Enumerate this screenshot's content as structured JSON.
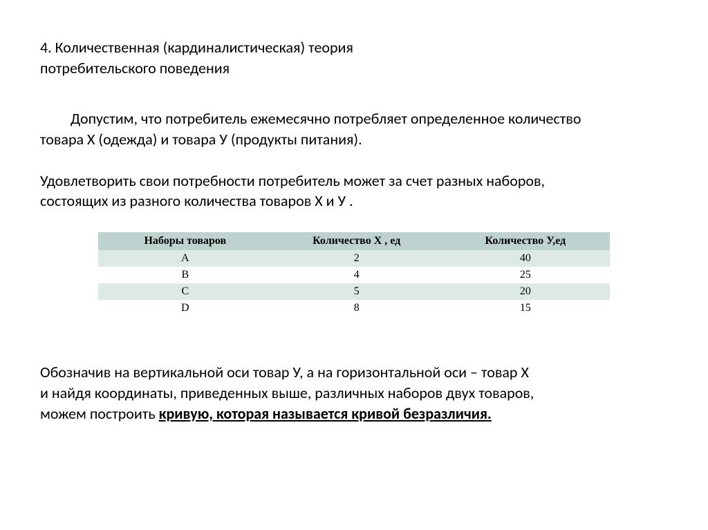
{
  "heading_line1": "4. Количественная (кардиналистическая) теория",
  "heading_line2": "потребительского поведения",
  "para1_line1": "Допустим, что потребитель ежемесячно потребляет определенное количество",
  "para1_line2": "товара Х (одежда) и товара У (продукты питания).",
  "para2_line1": "Удовлетворить свои потребности потребитель может за счет разных наборов,",
  "para2_line2": "состоящих из разного количества товаров Х и У .",
  "table": {
    "header_bg": "#bed3cf",
    "row_alt_bg": "#dde9e4",
    "row_bg": "#ffffff",
    "col_widths": [
      "34%",
      "33%",
      "33%"
    ],
    "columns": [
      "Наборы товаров",
      "Количество Х , ед",
      "Количество У,ед"
    ],
    "rows": [
      [
        "A",
        "2",
        "40"
      ],
      [
        "B",
        "4",
        "25"
      ],
      [
        "C",
        "5",
        "20"
      ],
      [
        "D",
        "8",
        "15"
      ]
    ]
  },
  "para3_line1": " Обозначив на вертикальной оси товар У, а на горизонтальной оси – товар Х",
  "para3_line2": " и найдя координаты, приведенных выше, различных наборов двух товаров,",
  "para3_line3_a": "можем построить ",
  "para3_line3_b": "кривую, которая называется кривой безразличия."
}
